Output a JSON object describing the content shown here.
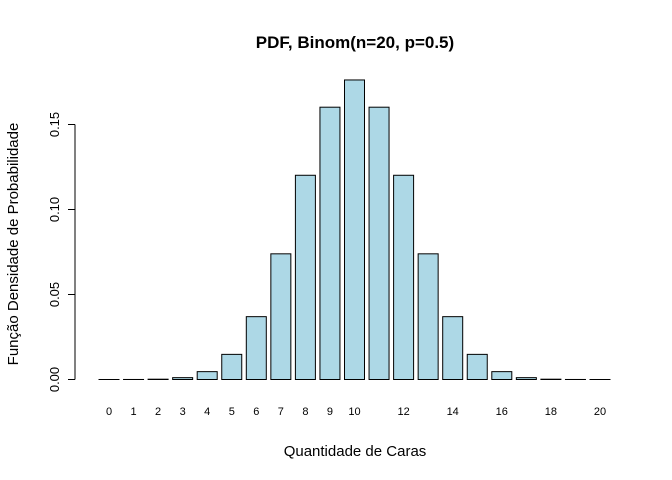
{
  "chart_data": {
    "type": "bar",
    "title": "PDF, Binom(n=20, p=0.5)",
    "xlabel": "Quantidade de Caras",
    "ylabel": "Função Densidade de Probabilidade",
    "categories": [
      "0",
      "1",
      "2",
      "3",
      "4",
      "5",
      "6",
      "7",
      "8",
      "9",
      "10",
      "11",
      "12",
      "13",
      "14",
      "15",
      "16",
      "17",
      "18",
      "19",
      "20"
    ],
    "category_labels": [
      "0",
      "1",
      "2",
      "3",
      "4",
      "5",
      "6",
      "7",
      "8",
      "9",
      "10",
      "",
      "12",
      "",
      "14",
      "",
      "16",
      "",
      "18",
      "",
      "20"
    ],
    "values": [
      1e-06,
      1.9e-05,
      0.000181,
      0.001087,
      0.004621,
      0.014786,
      0.036964,
      0.073929,
      0.120134,
      0.160179,
      0.176197,
      0.160179,
      0.120134,
      0.073929,
      0.036964,
      0.014786,
      0.004621,
      0.001087,
      0.000181,
      1.9e-05,
      1e-06
    ],
    "ylim": [
      0,
      0.18
    ],
    "yticks": [
      0.0,
      0.05,
      0.1,
      0.15
    ],
    "ytick_labels": [
      "0.00",
      "0.05",
      "0.10",
      "0.15"
    ],
    "bar_color": "#add8e6",
    "grid": false
  }
}
